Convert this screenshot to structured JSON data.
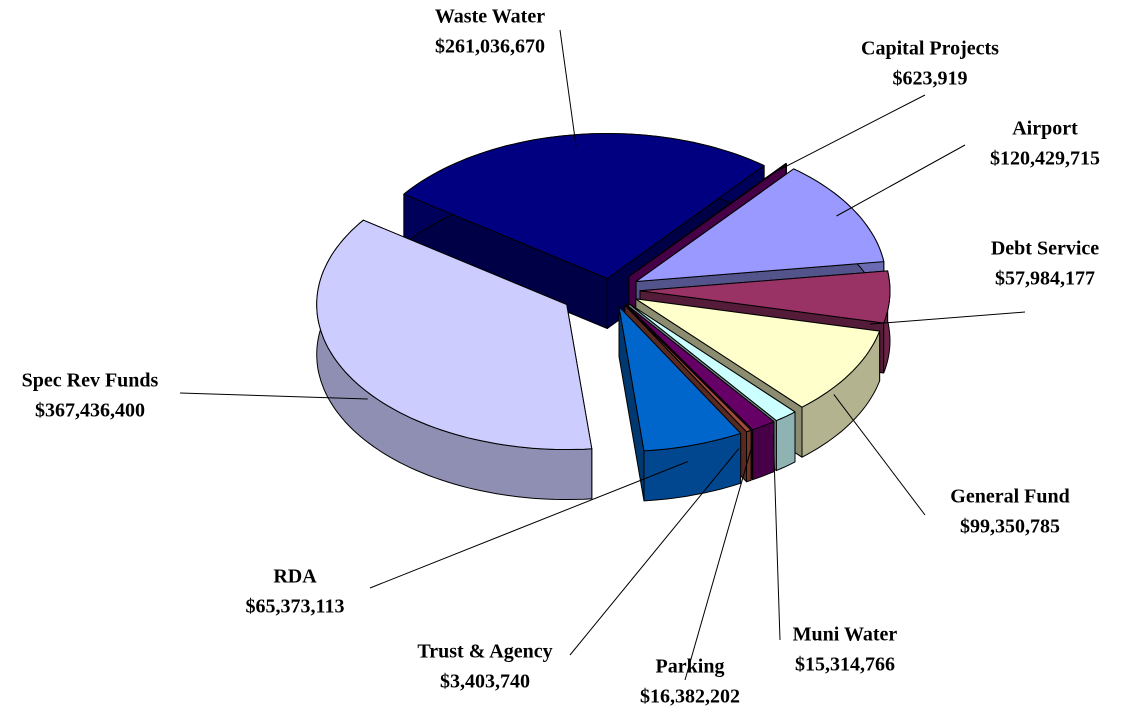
{
  "chart_data": {
    "type": "pie",
    "categories": [
      "Waste Water",
      "Capital Projects",
      "Airport",
      "Debt Service",
      "General Fund",
      "Muni Water",
      "Parking",
      "Trust & Agency",
      "RDA",
      "Spec Rev Funds"
    ],
    "values": [
      261036670,
      623919,
      120429715,
      57984177,
      99350785,
      15314766,
      16382202,
      3403740,
      65373113,
      367436400
    ],
    "value_labels": [
      "$261,036,670",
      "$623,919",
      "$120,429,715",
      "$57,984,177",
      "$99,350,785",
      "$15,314,766",
      "$16,382,202",
      "$3,403,740",
      "$65,373,113",
      "$367,436,400"
    ],
    "colors": [
      "#000080",
      "#800080",
      "#9999ff",
      "#993366",
      "#ffffcc",
      "#ccffff",
      "#660066",
      "#a04a3a",
      "#0066cc",
      "#ccccff"
    ]
  }
}
